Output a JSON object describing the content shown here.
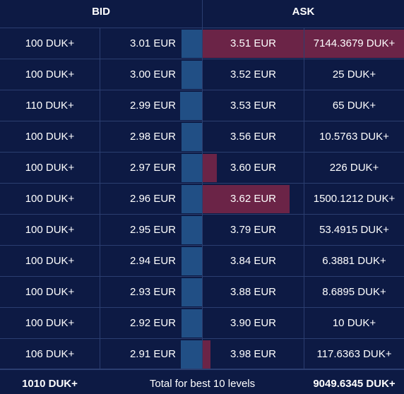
{
  "header": {
    "bid_label": "BID",
    "ask_label": "ASK"
  },
  "colors": {
    "background": "#0d1a44",
    "bid_bar": "#214f85",
    "ask_bar": "#6b2447",
    "grid": "#2b3e70"
  },
  "rows": [
    {
      "bid_qty": "100 DUK+",
      "bid_price": "3.01 EUR",
      "ask_price": "3.51 EUR",
      "ask_qty": "7144.3679 DUK+",
      "bid_depth": 0.2,
      "ask_depth": 1.0
    },
    {
      "bid_qty": "100 DUK+",
      "bid_price": "3.00 EUR",
      "ask_price": "3.52 EUR",
      "ask_qty": "25 DUK+",
      "bid_depth": 0.2,
      "ask_depth": 0.0
    },
    {
      "bid_qty": "110 DUK+",
      "bid_price": "2.99 EUR",
      "ask_price": "3.53 EUR",
      "ask_qty": "65 DUK+",
      "bid_depth": 0.22,
      "ask_depth": 0.0
    },
    {
      "bid_qty": "100 DUK+",
      "bid_price": "2.98 EUR",
      "ask_price": "3.56 EUR",
      "ask_qty": "10.5763 DUK+",
      "bid_depth": 0.2,
      "ask_depth": 0.0
    },
    {
      "bid_qty": "100 DUK+",
      "bid_price": "2.97 EUR",
      "ask_price": "3.60 EUR",
      "ask_qty": "226 DUK+",
      "bid_depth": 0.2,
      "ask_depth": 0.07
    },
    {
      "bid_qty": "100 DUK+",
      "bid_price": "2.96 EUR",
      "ask_price": "3.62 EUR",
      "ask_qty": "1500.1212 DUK+",
      "bid_depth": 0.2,
      "ask_depth": 0.43
    },
    {
      "bid_qty": "100 DUK+",
      "bid_price": "2.95 EUR",
      "ask_price": "3.79 EUR",
      "ask_qty": "53.4915 DUK+",
      "bid_depth": 0.2,
      "ask_depth": 0.0
    },
    {
      "bid_qty": "100 DUK+",
      "bid_price": "2.94 EUR",
      "ask_price": "3.84 EUR",
      "ask_qty": "6.3881 DUK+",
      "bid_depth": 0.2,
      "ask_depth": 0.0
    },
    {
      "bid_qty": "100 DUK+",
      "bid_price": "2.93 EUR",
      "ask_price": "3.88 EUR",
      "ask_qty": "8.6895 DUK+",
      "bid_depth": 0.2,
      "ask_depth": 0.0
    },
    {
      "bid_qty": "100 DUK+",
      "bid_price": "2.92 EUR",
      "ask_price": "3.90 EUR",
      "ask_qty": "10 DUK+",
      "bid_depth": 0.2,
      "ask_depth": 0.0
    },
    {
      "bid_qty": "106 DUK+",
      "bid_price": "2.91 EUR",
      "ask_price": "3.98 EUR",
      "ask_qty": "117.6363 DUK+",
      "bid_depth": 0.21,
      "ask_depth": 0.04
    }
  ],
  "footer": {
    "bid_total": "1010 DUK+",
    "label": "Total for best 10 levels",
    "ask_total": "9049.6345 DUK+"
  }
}
